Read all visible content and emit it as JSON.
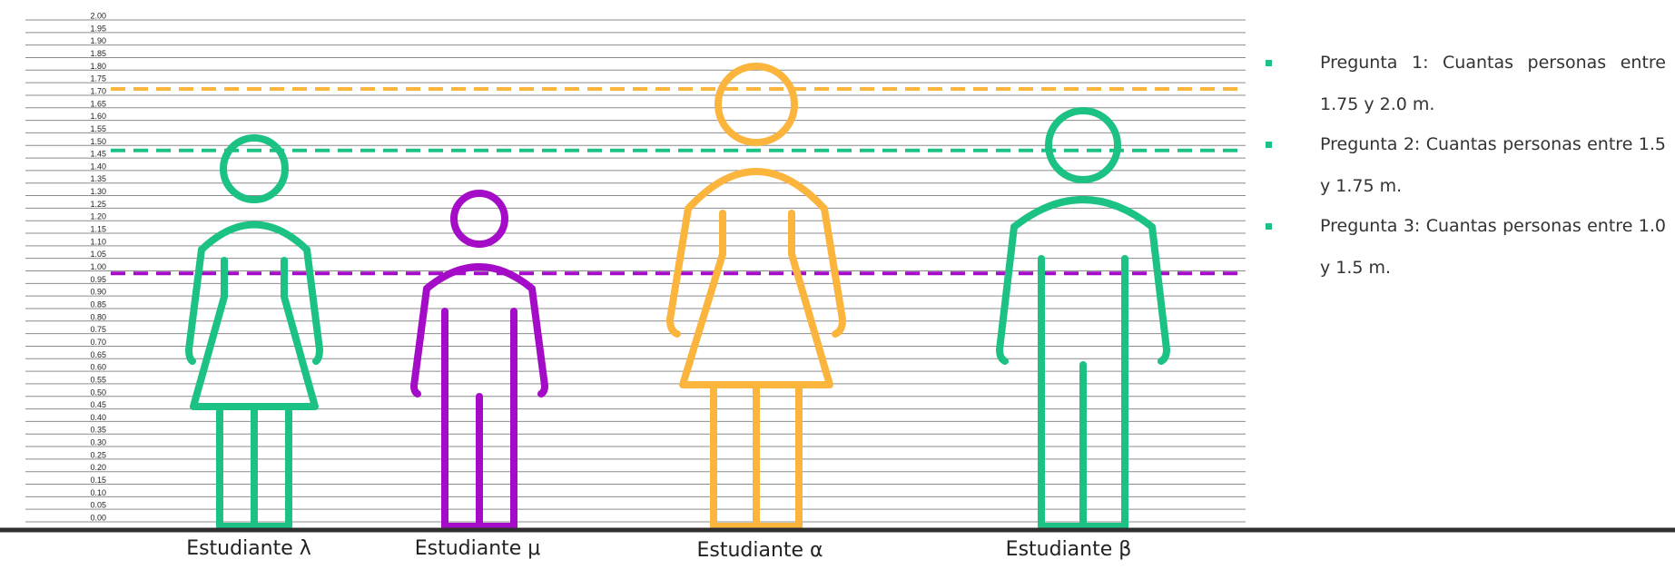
{
  "scale": {
    "min": 0.0,
    "max": 2.0,
    "step": 0.05,
    "tick_labels": [
      "0.00",
      "0.05",
      "0.10",
      "0.15",
      "0.20",
      "0.25",
      "0.30",
      "0.35",
      "0.40",
      "0.45",
      "0.50",
      "0.55",
      "0.60",
      "0.65",
      "0.70",
      "0.75",
      "0.80",
      "0.85",
      "0.90",
      "0.95",
      "1.00",
      "1.05",
      "1.10",
      "1.15",
      "1.20",
      "1.25",
      "1.30",
      "1.35",
      "1.40",
      "1.45",
      "1.50",
      "1.55",
      "1.60",
      "1.65",
      "1.70",
      "1.75",
      "1.80",
      "1.85",
      "1.90",
      "1.95",
      "2.00"
    ]
  },
  "threshold_lines": [
    {
      "value": 1.725,
      "color": "#fbb43c"
    },
    {
      "value": 1.48,
      "color": "#1cc184"
    },
    {
      "value": 0.99,
      "color": "#a40cc8"
    }
  ],
  "figures": [
    {
      "label": "Estudiante λ",
      "type": "woman-icon",
      "color": "#1cc184"
    },
    {
      "label": "Estudiante μ",
      "type": "man-icon",
      "color": "#a40cc8"
    },
    {
      "label": "Estudiante α",
      "type": "woman-icon",
      "color": "#fbb43c"
    },
    {
      "label": "Estudiante β",
      "type": "man-icon",
      "color": "#1cc184"
    }
  ],
  "questions": [
    {
      "text": "Pregunta 1: Cuantas personas entre 1.75 y 2.0 m.",
      "bullet_color": "#1cc184"
    },
    {
      "text": "Pregunta 2: Cuantas personas entre 1.5 y 1.75 m.",
      "bullet_color": "#1cc184"
    },
    {
      "text": "Pregunta 3: Cuantas personas entre 1.0 y 1.5 m.",
      "bullet_color": "#1cc184"
    }
  ],
  "colors": {
    "grid": "#8c8c8c",
    "ground": "#2f2f2f"
  }
}
